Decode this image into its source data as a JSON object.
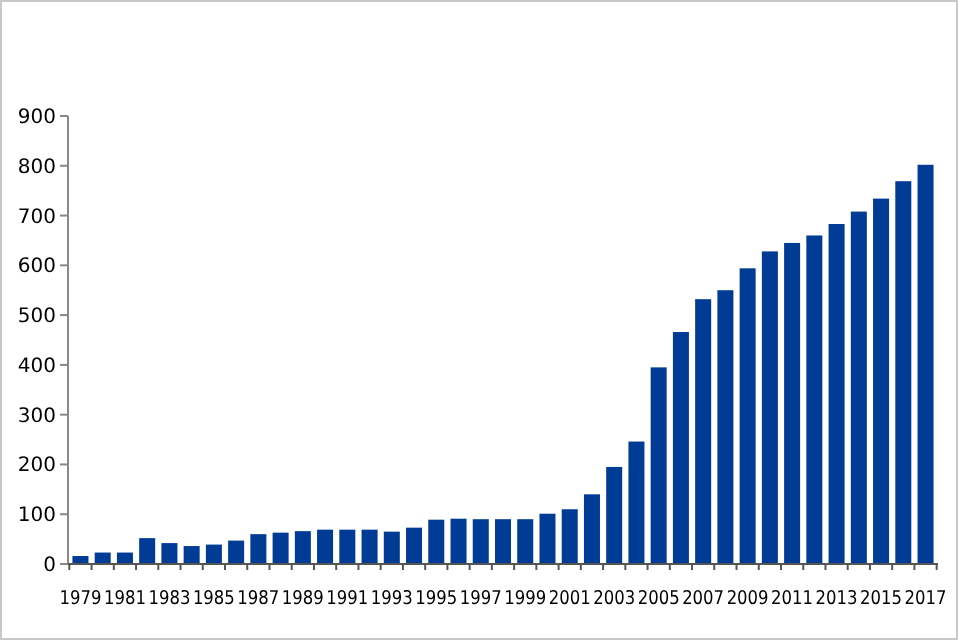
{
  "chart_data": {
    "type": "bar",
    "categories": [
      "1979",
      null,
      "1981",
      null,
      "1983",
      null,
      "1985",
      null,
      "1987",
      null,
      "1989",
      null,
      "1991",
      null,
      "1993",
      null,
      "1995",
      null,
      "1997",
      null,
      "1999",
      null,
      "2001",
      null,
      "2003",
      null,
      "2005",
      null,
      "2007",
      null,
      "2009",
      null,
      "2011",
      null,
      "2013",
      null,
      "2015",
      null,
      "2017"
    ],
    "series": [
      {
        "color": "#003b95",
        "values": [
          16,
          23,
          23,
          52,
          42,
          36,
          39,
          47,
          60,
          63,
          66,
          69,
          69,
          69,
          65,
          73,
          89,
          91,
          90,
          90,
          90,
          101,
          110,
          140,
          195,
          246,
          395,
          466,
          532,
          550,
          594,
          628,
          645,
          660,
          683,
          708,
          734,
          769,
          802
        ]
      }
    ],
    "ylim": [
      0,
      900
    ],
    "yticks": [
      0,
      100,
      200,
      300,
      400,
      500,
      600,
      700,
      800,
      900
    ]
  }
}
